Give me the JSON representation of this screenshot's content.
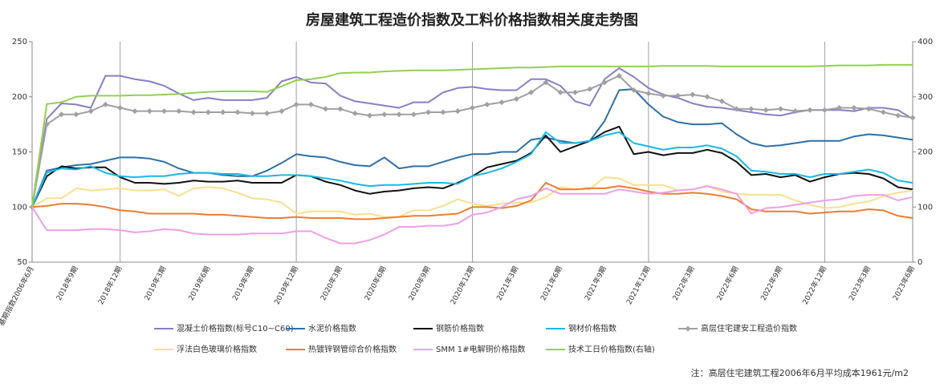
{
  "chart_data": {
    "type": "line",
    "title": "房屋建筑工程造价指数及工料价格指数相关度走势图",
    "note": "注：高层住宅建筑工程2006年6月平均成本1961元/m2",
    "categories": [
      "基期指数2006年6月",
      null,
      null,
      "2018年9期",
      null,
      null,
      "2018年12期",
      null,
      null,
      "2019年3期",
      null,
      null,
      "2019年6期",
      null,
      null,
      "2019年9期",
      null,
      null,
      "2019年12期",
      null,
      null,
      "2020年3期",
      null,
      null,
      "2020年6期",
      null,
      null,
      "2020年9期",
      null,
      null,
      "2020年12期",
      null,
      null,
      "2021年3期",
      null,
      null,
      "2021年6期",
      null,
      null,
      "2021年9期",
      null,
      null,
      "2021年12期",
      null,
      null,
      "2022年3期",
      null,
      null,
      "2022年6期",
      null,
      null,
      "2022年9期",
      null,
      null,
      "2022年12期",
      null,
      null,
      "2023年3期",
      null,
      null,
      "2023年6期"
    ],
    "ylim": [
      50,
      250
    ],
    "yticks": [
      50,
      100,
      150,
      200,
      250
    ],
    "y2lim": [
      0,
      400
    ],
    "y2ticks": [
      0,
      100,
      200,
      300,
      400
    ],
    "legend": "bottom",
    "series": [
      {
        "name": "混凝土价格指数(标号C10~C60)",
        "color": "#8c7cc8",
        "values": [
          100,
          180,
          194,
          193,
          190,
          219,
          219,
          216,
          214,
          210,
          203,
          197,
          199,
          197,
          197,
          197,
          199,
          214,
          218,
          213,
          212,
          201,
          196,
          194,
          192,
          190,
          195,
          195,
          204,
          208,
          209,
          207,
          206,
          206,
          216,
          216,
          210,
          196,
          192,
          216,
          226,
          218,
          208,
          202,
          199,
          194,
          191,
          190,
          188,
          186,
          184,
          183,
          186,
          188,
          188,
          188,
          187,
          190,
          190,
          188,
          180
        ]
      },
      {
        "name": "水泥价格指数",
        "color": "#2e6fa8",
        "values": [
          100,
          133,
          136,
          138,
          139,
          142,
          145,
          145,
          144,
          141,
          135,
          131,
          131,
          129,
          128,
          128,
          133,
          140,
          148,
          146,
          145,
          141,
          138,
          137,
          145,
          135,
          137,
          137,
          141,
          145,
          148,
          148,
          150,
          150,
          161,
          163,
          160,
          158,
          160,
          178,
          206,
          207,
          193,
          182,
          177,
          175,
          175,
          176,
          166,
          158,
          155,
          156,
          158,
          160,
          160,
          160,
          164,
          166,
          165,
          163,
          161
        ]
      },
      {
        "name": "钢筋价格指数",
        "color": "#111111",
        "values": [
          100,
          128,
          137,
          135,
          136,
          136,
          127,
          122,
          122,
          121,
          122,
          124,
          123,
          123,
          124,
          122,
          122,
          122,
          129,
          128,
          123,
          120,
          115,
          112,
          114,
          115,
          117,
          118,
          117,
          122,
          128,
          136,
          139,
          142,
          149,
          165,
          150,
          155,
          160,
          168,
          173,
          148,
          150,
          147,
          149,
          149,
          152,
          149,
          141,
          129,
          130,
          127,
          129,
          123,
          127,
          130,
          131,
          130,
          126,
          118,
          116
        ]
      },
      {
        "name": "钢材价格指数",
        "color": "#1ab8e8",
        "values": [
          100,
          131,
          135,
          134,
          137,
          131,
          128,
          127,
          128,
          128,
          130,
          131,
          131,
          130,
          130,
          128,
          128,
          129,
          129,
          128,
          126,
          124,
          121,
          119,
          120,
          120,
          121,
          122,
          122,
          121,
          128,
          131,
          135,
          141,
          148,
          168,
          158,
          158,
          160,
          165,
          168,
          158,
          155,
          152,
          154,
          154,
          156,
          153,
          146,
          133,
          132,
          130,
          130,
          127,
          130,
          130,
          132,
          134,
          131,
          124,
          122
        ]
      },
      {
        "name": "高层住宅建安工程造价指数",
        "color": "#a0a0a0",
        "marker": "diamond",
        "values": [
          100,
          175,
          184,
          184,
          187,
          193,
          190,
          187,
          187,
          187,
          187,
          186,
          186,
          186,
          186,
          185,
          185,
          187,
          193,
          193,
          189,
          189,
          185,
          183,
          184,
          184,
          184,
          186,
          186,
          187,
          190,
          193,
          195,
          198,
          204,
          213,
          204,
          204,
          207,
          213,
          219,
          206,
          203,
          201,
          201,
          202,
          200,
          196,
          189,
          189,
          188,
          189,
          187,
          188,
          188,
          190,
          190,
          189,
          186,
          183,
          181
        ]
      },
      {
        "name": "浮法白色玻璃价格指数",
        "color": "#f8e08e",
        "values": [
          100,
          108,
          108,
          117,
          115,
          116,
          117,
          115,
          115,
          116,
          110,
          117,
          118,
          117,
          113,
          108,
          107,
          104,
          94,
          96,
          96,
          96,
          93,
          94,
          91,
          91,
          97,
          97,
          101,
          107,
          103,
          101,
          103,
          104,
          104,
          109,
          118,
          116,
          116,
          127,
          126,
          120,
          120,
          120,
          115,
          116,
          119,
          114,
          112,
          111,
          111,
          111,
          106,
          102,
          99,
          100,
          103,
          105,
          110,
          113,
          115
        ]
      },
      {
        "name": "热镀锌钢管综合价格指数",
        "color": "#ed7d31",
        "values": [
          100,
          101,
          103,
          103,
          102,
          100,
          97,
          96,
          94,
          94,
          94,
          94,
          93,
          93,
          92,
          91,
          90,
          90,
          91,
          90,
          90,
          90,
          89,
          89,
          90,
          91,
          92,
          92,
          93,
          94,
          100,
          100,
          99,
          101,
          106,
          122,
          116,
          116,
          117,
          117,
          119,
          117,
          114,
          112,
          112,
          113,
          112,
          110,
          107,
          98,
          96,
          96,
          96,
          94,
          95,
          96,
          96,
          98,
          97,
          92,
          90
        ]
      },
      {
        "name": "SMM 1#电解铜价格指数",
        "color": "#ef9fe6",
        "values": [
          100,
          79,
          79,
          79,
          80,
          80,
          79,
          77,
          78,
          80,
          79,
          76,
          75,
          75,
          75,
          76,
          76,
          76,
          78,
          78,
          72,
          67,
          67,
          70,
          75,
          82,
          82,
          83,
          83,
          85,
          93,
          95,
          100,
          107,
          110,
          117,
          112,
          112,
          112,
          112,
          116,
          114,
          112,
          113,
          115,
          116,
          119,
          116,
          112,
          94,
          99,
          100,
          102,
          104,
          106,
          107,
          110,
          111,
          111,
          106,
          109
        ]
      },
      {
        "name": "技术工日价格指数(右轴)",
        "color": "#92d050",
        "axis": "y2",
        "values": [
          100,
          287,
          290,
          300,
          302,
          302,
          302,
          303,
          303,
          304,
          305,
          307,
          309,
          310,
          310,
          310,
          309,
          319,
          330,
          332,
          336,
          343,
          344,
          344,
          346,
          347,
          348,
          348,
          348,
          349,
          350,
          351,
          352,
          353,
          353,
          354,
          355,
          355,
          355,
          355,
          355,
          355,
          355,
          356,
          356,
          356,
          356,
          355,
          355,
          355,
          355,
          355,
          355,
          355,
          356,
          357,
          357,
          357,
          358,
          358,
          358
        ]
      }
    ]
  }
}
